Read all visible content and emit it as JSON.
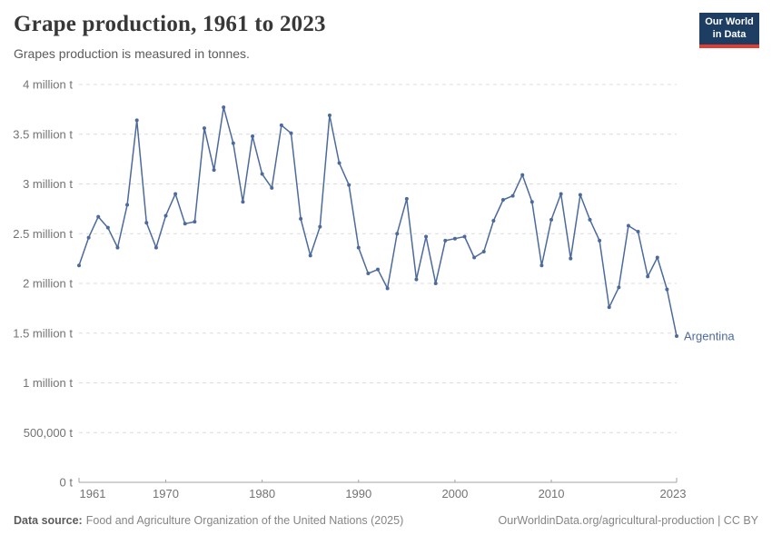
{
  "header": {
    "title": "Grape production, 1961 to 2023",
    "subtitle": "Grapes production is measured in tonnes.",
    "logo": {
      "line1": "Our World",
      "line2": "in Data"
    }
  },
  "chart_data": {
    "type": "line",
    "title": "Grape production, 1961 to 2023",
    "ylabel": "tonnes",
    "xlabel": "",
    "grid": true,
    "xlim": [
      1961,
      2023
    ],
    "ylim": [
      0,
      4000000
    ],
    "x_ticks": [
      1961,
      1970,
      1980,
      1990,
      2000,
      2010,
      2023
    ],
    "y_ticks": [
      {
        "value": 0,
        "label": "0 t"
      },
      {
        "value": 500000,
        "label": "500,000 t"
      },
      {
        "value": 1000000,
        "label": "1 million t"
      },
      {
        "value": 1500000,
        "label": "1.5 million t"
      },
      {
        "value": 2000000,
        "label": "2 million t"
      },
      {
        "value": 2500000,
        "label": "2.5 million t"
      },
      {
        "value": 3000000,
        "label": "3 million t"
      },
      {
        "value": 3500000,
        "label": "3.5 million t"
      },
      {
        "value": 4000000,
        "label": "4 million t"
      }
    ],
    "series": [
      {
        "name": "Argentina",
        "color": "#4C6A9C",
        "x": [
          1961,
          1962,
          1963,
          1964,
          1965,
          1966,
          1967,
          1968,
          1969,
          1970,
          1971,
          1972,
          1973,
          1974,
          1975,
          1976,
          1977,
          1978,
          1979,
          1980,
          1981,
          1982,
          1983,
          1984,
          1985,
          1986,
          1987,
          1988,
          1989,
          1990,
          1991,
          1992,
          1993,
          1994,
          1995,
          1996,
          1997,
          1998,
          1999,
          2000,
          2001,
          2002,
          2003,
          2004,
          2005,
          2006,
          2007,
          2008,
          2009,
          2010,
          2011,
          2012,
          2013,
          2014,
          2015,
          2016,
          2017,
          2018,
          2019,
          2020,
          2021,
          2022,
          2023
        ],
        "values": [
          2180000,
          2460000,
          2670000,
          2560000,
          2360000,
          2790000,
          3640000,
          2610000,
          2360000,
          2680000,
          2900000,
          2600000,
          2620000,
          3560000,
          3140000,
          3770000,
          3410000,
          2820000,
          3480000,
          3100000,
          2960000,
          3590000,
          3510000,
          2650000,
          2280000,
          2570000,
          3690000,
          3210000,
          2990000,
          2360000,
          2100000,
          2140000,
          1950000,
          2500000,
          2850000,
          2040000,
          2470000,
          2000000,
          2430000,
          2450000,
          2470000,
          2260000,
          2320000,
          2630000,
          2840000,
          2880000,
          3090000,
          2820000,
          2180000,
          2640000,
          2900000,
          2250000,
          2890000,
          2640000,
          2430000,
          1760000,
          1960000,
          2580000,
          2520000,
          2070000,
          2260000,
          1940000,
          1470000
        ]
      }
    ],
    "end_label": "Argentina",
    "legend_position": "end-of-line"
  },
  "footer": {
    "source_label": "Data source:",
    "source": "Food and Agriculture Organization of the United Nations (2025)",
    "right": "OurWorldinData.org/agricultural-production | CC BY"
  },
  "colors": {
    "line": "#4C6A9C",
    "grid": "#dcdcdc",
    "axis": "#a3a3a3",
    "tick_text": "#737373",
    "logo_bg": "#1d3d63",
    "logo_red": "#e23d33"
  }
}
